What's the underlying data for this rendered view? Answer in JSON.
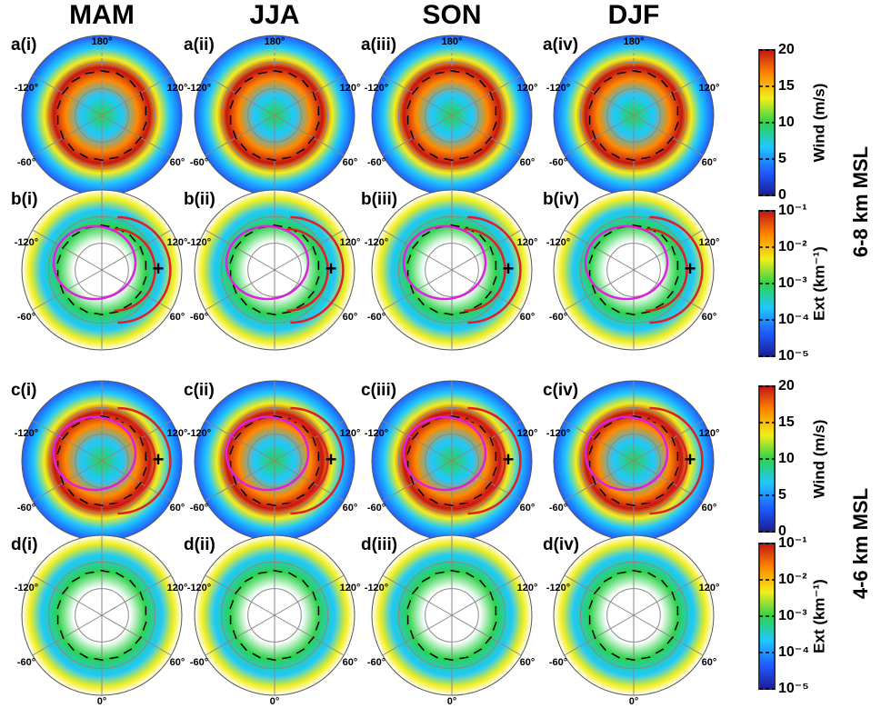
{
  "columns": [
    "MAM",
    "JJA",
    "SON",
    "DJF"
  ],
  "panels": [
    [
      "a(i)",
      "a(ii)",
      "a(iii)",
      "a(iv)"
    ],
    [
      "b(i)",
      "b(ii)",
      "b(iii)",
      "b(iv)"
    ],
    [
      "c(i)",
      "c(ii)",
      "c(iii)",
      "c(iv)"
    ],
    [
      "d(i)",
      "d(ii)",
      "d(iii)",
      "d(iv)"
    ]
  ],
  "longitude_labels": {
    "top": "180°",
    "upper_left": "-120°",
    "upper_right": "120°",
    "lower_left": "-60°",
    "lower_right": "60°",
    "bottom": "0°"
  },
  "colorbars": {
    "wind": {
      "label": "Wind (m/s)",
      "lim": [
        0,
        20
      ],
      "ticks": [
        0,
        5,
        10,
        15,
        20
      ],
      "colors": [
        "#1a1a9a",
        "#1f5fff",
        "#1fc8ff",
        "#2ed24a",
        "#f2ee1c",
        "#ff8a00",
        "#c41414"
      ]
    },
    "ext": {
      "label": "Ext (km⁻¹)",
      "log": true,
      "lim": [
        1e-05,
        0.1
      ],
      "ticks": [
        {
          "value": 1e-05,
          "label": "10⁻⁵"
        },
        {
          "value": 0.0001,
          "label": "10⁻⁴"
        },
        {
          "value": 0.001,
          "label": "10⁻³"
        },
        {
          "value": 0.01,
          "label": "10⁻²"
        },
        {
          "value": 0.1,
          "label": "10⁻¹"
        }
      ],
      "colors": [
        "#1a1a9a",
        "#1f5fff",
        "#1fc8ff",
        "#2ed24a",
        "#f2ee1c",
        "#ff8a00",
        "#c41414"
      ]
    }
  },
  "height_labels": [
    "6-8 km MSL",
    "4-6 km MSL"
  ]
}
